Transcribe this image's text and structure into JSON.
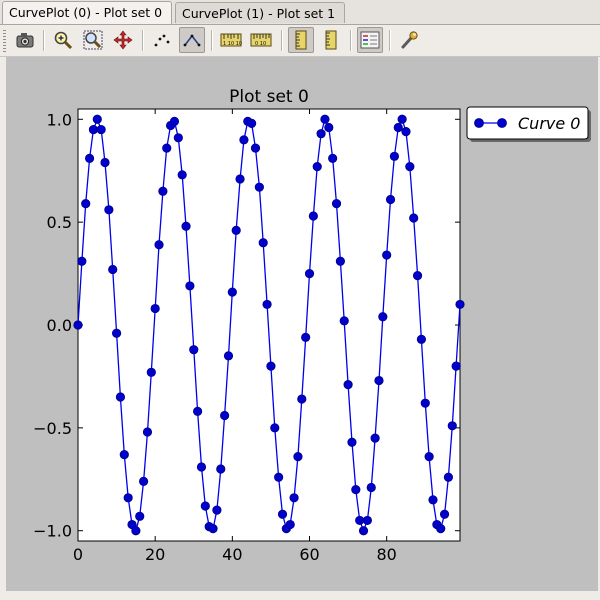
{
  "tabs": [
    {
      "label": "CurvePlot (0) - Plot set 0",
      "active": true
    },
    {
      "label": "CurvePlot (1) - Plot set 1",
      "active": false
    }
  ],
  "toolbar": {
    "buttons": [
      {
        "name": "camera-icon",
        "checked": false
      },
      {
        "name": "zoom-in-icon",
        "checked": false
      },
      {
        "name": "zoom-out-icon",
        "checked": false
      },
      {
        "name": "pan-icon",
        "checked": false
      },
      {
        "name": "points-mode-icon",
        "checked": false
      },
      {
        "name": "lines-mode-icon",
        "checked": true
      },
      {
        "name": "horizontal-axis-log-icon",
        "checked": false
      },
      {
        "name": "vertical-axis-log-icon",
        "checked": false
      },
      {
        "name": "horizontal-scale-icon",
        "checked": true
      },
      {
        "name": "vertical-scale-icon",
        "checked": false
      },
      {
        "name": "legend-icon",
        "checked": true
      },
      {
        "name": "settings-wrench-icon",
        "checked": false
      }
    ]
  },
  "colors": {
    "curve": "#0000ee",
    "marker": "#0000cc",
    "canvas_bg": "#bfbfbf",
    "plot_bg": "#ffffff"
  },
  "chart_data": {
    "type": "line",
    "title": "Plot set 0",
    "xlabel": "",
    "ylabel": "",
    "xlim": [
      0,
      99
    ],
    "ylim": [
      -1.05,
      1.05
    ],
    "xticks": [
      "0",
      "20",
      "40",
      "60",
      "80"
    ],
    "yticks": [
      "1.0",
      "0.5",
      "0.0",
      "−0.5",
      "−1.0"
    ],
    "legend_position": "outside-right-top",
    "grid": false,
    "series": [
      {
        "name": "Curve 0",
        "marker": "circle",
        "x": [
          0,
          1,
          2,
          3,
          4,
          5,
          6,
          7,
          8,
          9,
          10,
          11,
          12,
          13,
          14,
          15,
          16,
          17,
          18,
          19,
          20,
          21,
          22,
          23,
          24,
          25,
          26,
          27,
          28,
          29,
          30,
          31,
          32,
          33,
          34,
          35,
          36,
          37,
          38,
          39,
          40,
          41,
          42,
          43,
          44,
          45,
          46,
          47,
          48,
          49,
          50,
          51,
          52,
          53,
          54,
          55,
          56,
          57,
          58,
          59,
          60,
          61,
          62,
          63,
          64,
          65,
          66,
          67,
          68,
          69,
          70,
          71,
          72,
          73,
          74,
          75,
          76,
          77,
          78,
          79,
          80,
          81,
          82,
          83,
          84,
          85,
          86,
          87,
          88,
          89,
          90,
          91,
          92,
          93,
          94,
          95,
          96,
          97,
          98,
          99
        ],
        "y": [
          0.0,
          0.31,
          0.59,
          0.81,
          0.95,
          1.0,
          0.95,
          0.79,
          0.56,
          0.27,
          -0.04,
          -0.35,
          -0.63,
          -0.84,
          -0.97,
          -1.0,
          -0.93,
          -0.76,
          -0.52,
          -0.23,
          0.08,
          0.39,
          0.65,
          0.86,
          0.97,
          0.99,
          0.91,
          0.73,
          0.48,
          0.19,
          -0.12,
          -0.42,
          -0.69,
          -0.88,
          -0.98,
          -0.99,
          -0.9,
          -0.7,
          -0.44,
          -0.15,
          0.16,
          0.46,
          0.71,
          0.9,
          0.99,
          0.98,
          0.86,
          0.67,
          0.4,
          0.1,
          -0.2,
          -0.5,
          -0.74,
          -0.92,
          -0.99,
          -0.97,
          -0.84,
          -0.64,
          -0.36,
          -0.06,
          0.25,
          0.53,
          0.77,
          0.93,
          1.0,
          0.96,
          0.81,
          0.59,
          0.31,
          0.02,
          -0.29,
          -0.57,
          -0.8,
          -0.95,
          -1.0,
          -0.95,
          -0.79,
          -0.55,
          -0.27,
          0.04,
          0.34,
          0.61,
          0.82,
          0.96,
          1.0,
          0.94,
          0.77,
          0.52,
          0.24,
          -0.07,
          -0.38,
          -0.64,
          -0.85,
          -0.97,
          -0.99,
          -0.92,
          -0.74,
          -0.49,
          -0.2,
          0.1
        ]
      }
    ]
  }
}
